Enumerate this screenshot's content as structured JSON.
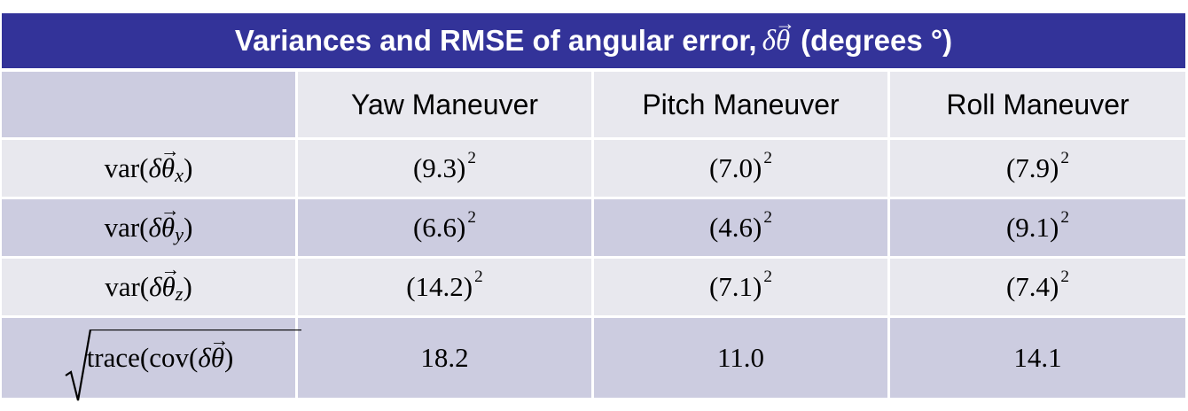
{
  "title": {
    "text": "Variances and RMSE of angular error,",
    "symbol_delta": "δ",
    "symbol_theta": "θ",
    "units": "(degrees °)"
  },
  "columns": [
    "",
    "Yaw Maneuver",
    "Pitch Maneuver",
    "Roll Maneuver"
  ],
  "rows": [
    {
      "label": {
        "prefix": "var(",
        "delta": "δ",
        "theta": "θ",
        "sub": "x",
        "suffix": ")"
      },
      "values": [
        {
          "base": "(9.3)",
          "exp": "2"
        },
        {
          "base": "(7.0)",
          "exp": "2"
        },
        {
          "base": "(7.9)",
          "exp": "2"
        }
      ]
    },
    {
      "label": {
        "prefix": "var(",
        "delta": "δ",
        "theta": "θ",
        "sub": "y",
        "suffix": ")"
      },
      "values": [
        {
          "base": "(6.6)",
          "exp": "2"
        },
        {
          "base": "(4.6)",
          "exp": "2"
        },
        {
          "base": "(9.1)",
          "exp": "2"
        }
      ]
    },
    {
      "label": {
        "prefix": "var(",
        "delta": "δ",
        "theta": "θ",
        "sub": "z",
        "suffix": ")"
      },
      "values": [
        {
          "base": "(14.2)",
          "exp": "2"
        },
        {
          "base": "(7.1)",
          "exp": "2"
        },
        {
          "base": "(7.4)",
          "exp": "2"
        }
      ]
    }
  ],
  "rmse_row": {
    "label": {
      "prefix": "trace(cov(",
      "delta": "δ",
      "theta": "θ",
      "suffix": ")"
    },
    "values": [
      "18.2",
      "11.0",
      "14.1"
    ]
  },
  "colors": {
    "title_bg": "#333399",
    "row_dark": "#cccce0",
    "row_light": "#e8e8ee",
    "grid": "#ffffff"
  }
}
